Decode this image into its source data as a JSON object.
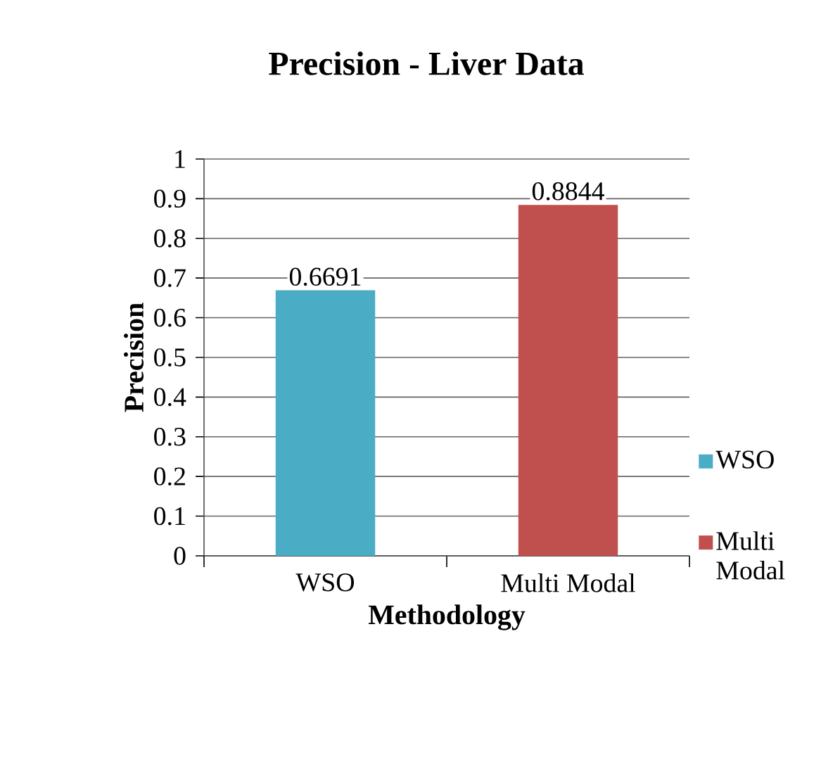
{
  "chart_data": {
    "type": "bar",
    "title": "Precision - Liver Data",
    "xlabel": "Methodology",
    "ylabel": "Precision",
    "categories": [
      "WSO",
      "Multi Modal"
    ],
    "series": [
      {
        "name": "WSO",
        "color": "#4bacc6",
        "values": [
          0.6691,
          null
        ]
      },
      {
        "name": "Multi Modal",
        "color": "#c0504d",
        "values": [
          null,
          0.8844
        ]
      }
    ],
    "ylim": [
      0,
      1
    ],
    "yticks": [
      0,
      0.1,
      0.2,
      0.3,
      0.4,
      0.5,
      0.6,
      0.7,
      0.8,
      0.9,
      1
    ],
    "grid": "y",
    "legend": "right",
    "data_labels": true
  }
}
